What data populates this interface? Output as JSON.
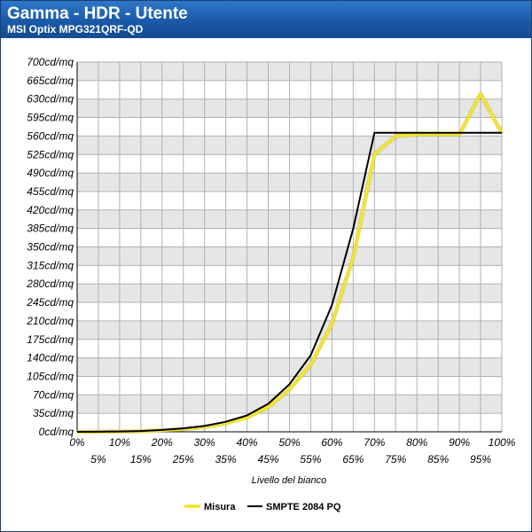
{
  "header": {
    "title": "Gamma - HDR - Utente",
    "subtitle": "MSI Optix MPG321QRF-QD"
  },
  "colors": {
    "header_bg": "#1a5aa8",
    "band_shaded": "#e6e6e6",
    "measured_line": "#f2e629",
    "reference_line": "#000000"
  },
  "chart_data": {
    "type": "line",
    "title": "Gamma - HDR - Utente",
    "subtitle": "MSI Optix MPG321QRF-QD",
    "xlabel": "Livello del bianco",
    "ylabel": "",
    "x": [
      0,
      5,
      10,
      15,
      20,
      25,
      30,
      35,
      40,
      45,
      50,
      55,
      60,
      65,
      70,
      75,
      80,
      85,
      90,
      95,
      100
    ],
    "x_tick_labels": [
      "0%",
      "5%",
      "10%",
      "15%",
      "20%",
      "25%",
      "30%",
      "35%",
      "40%",
      "45%",
      "50%",
      "55%",
      "60%",
      "65%",
      "70%",
      "75%",
      "80%",
      "85%",
      "90%",
      "95%",
      "100%"
    ],
    "ylim": [
      0,
      700
    ],
    "y_ticks": [
      0,
      35,
      70,
      105,
      140,
      175,
      210,
      245,
      280,
      315,
      350,
      385,
      420,
      455,
      490,
      525,
      560,
      595,
      630,
      665,
      700
    ],
    "y_tick_labels": [
      "0cd/mq",
      "35cd/mq",
      "70cd/mq",
      "105cd/mq",
      "140cd/mq",
      "175cd/mq",
      "210cd/mq",
      "245cd/mq",
      "280cd/mq",
      "315cd/mq",
      "350cd/mq",
      "385cd/mq",
      "420cd/mq",
      "455cd/mq",
      "490cd/mq",
      "525cd/mq",
      "560cd/mq",
      "595cd/mq",
      "630cd/mq",
      "665cd/mq",
      "700cd/mq"
    ],
    "grid": true,
    "legend_position": "bottom-center",
    "series": [
      {
        "name": "Misura",
        "color": "#f2e629",
        "values": [
          0,
          0,
          0.3,
          1,
          2.5,
          5,
          9,
          16,
          27,
          47,
          80,
          127,
          205,
          330,
          525,
          560,
          563,
          563,
          563,
          640,
          565
        ]
      },
      {
        "name": "SMPTE 2084 PQ",
        "color": "#000000",
        "values": [
          0,
          0.2,
          0.6,
          1.5,
          3.5,
          6.5,
          11,
          19,
          31,
          53,
          90,
          145,
          240,
          385,
          566,
          566,
          566,
          566,
          566,
          566,
          566
        ]
      }
    ]
  }
}
